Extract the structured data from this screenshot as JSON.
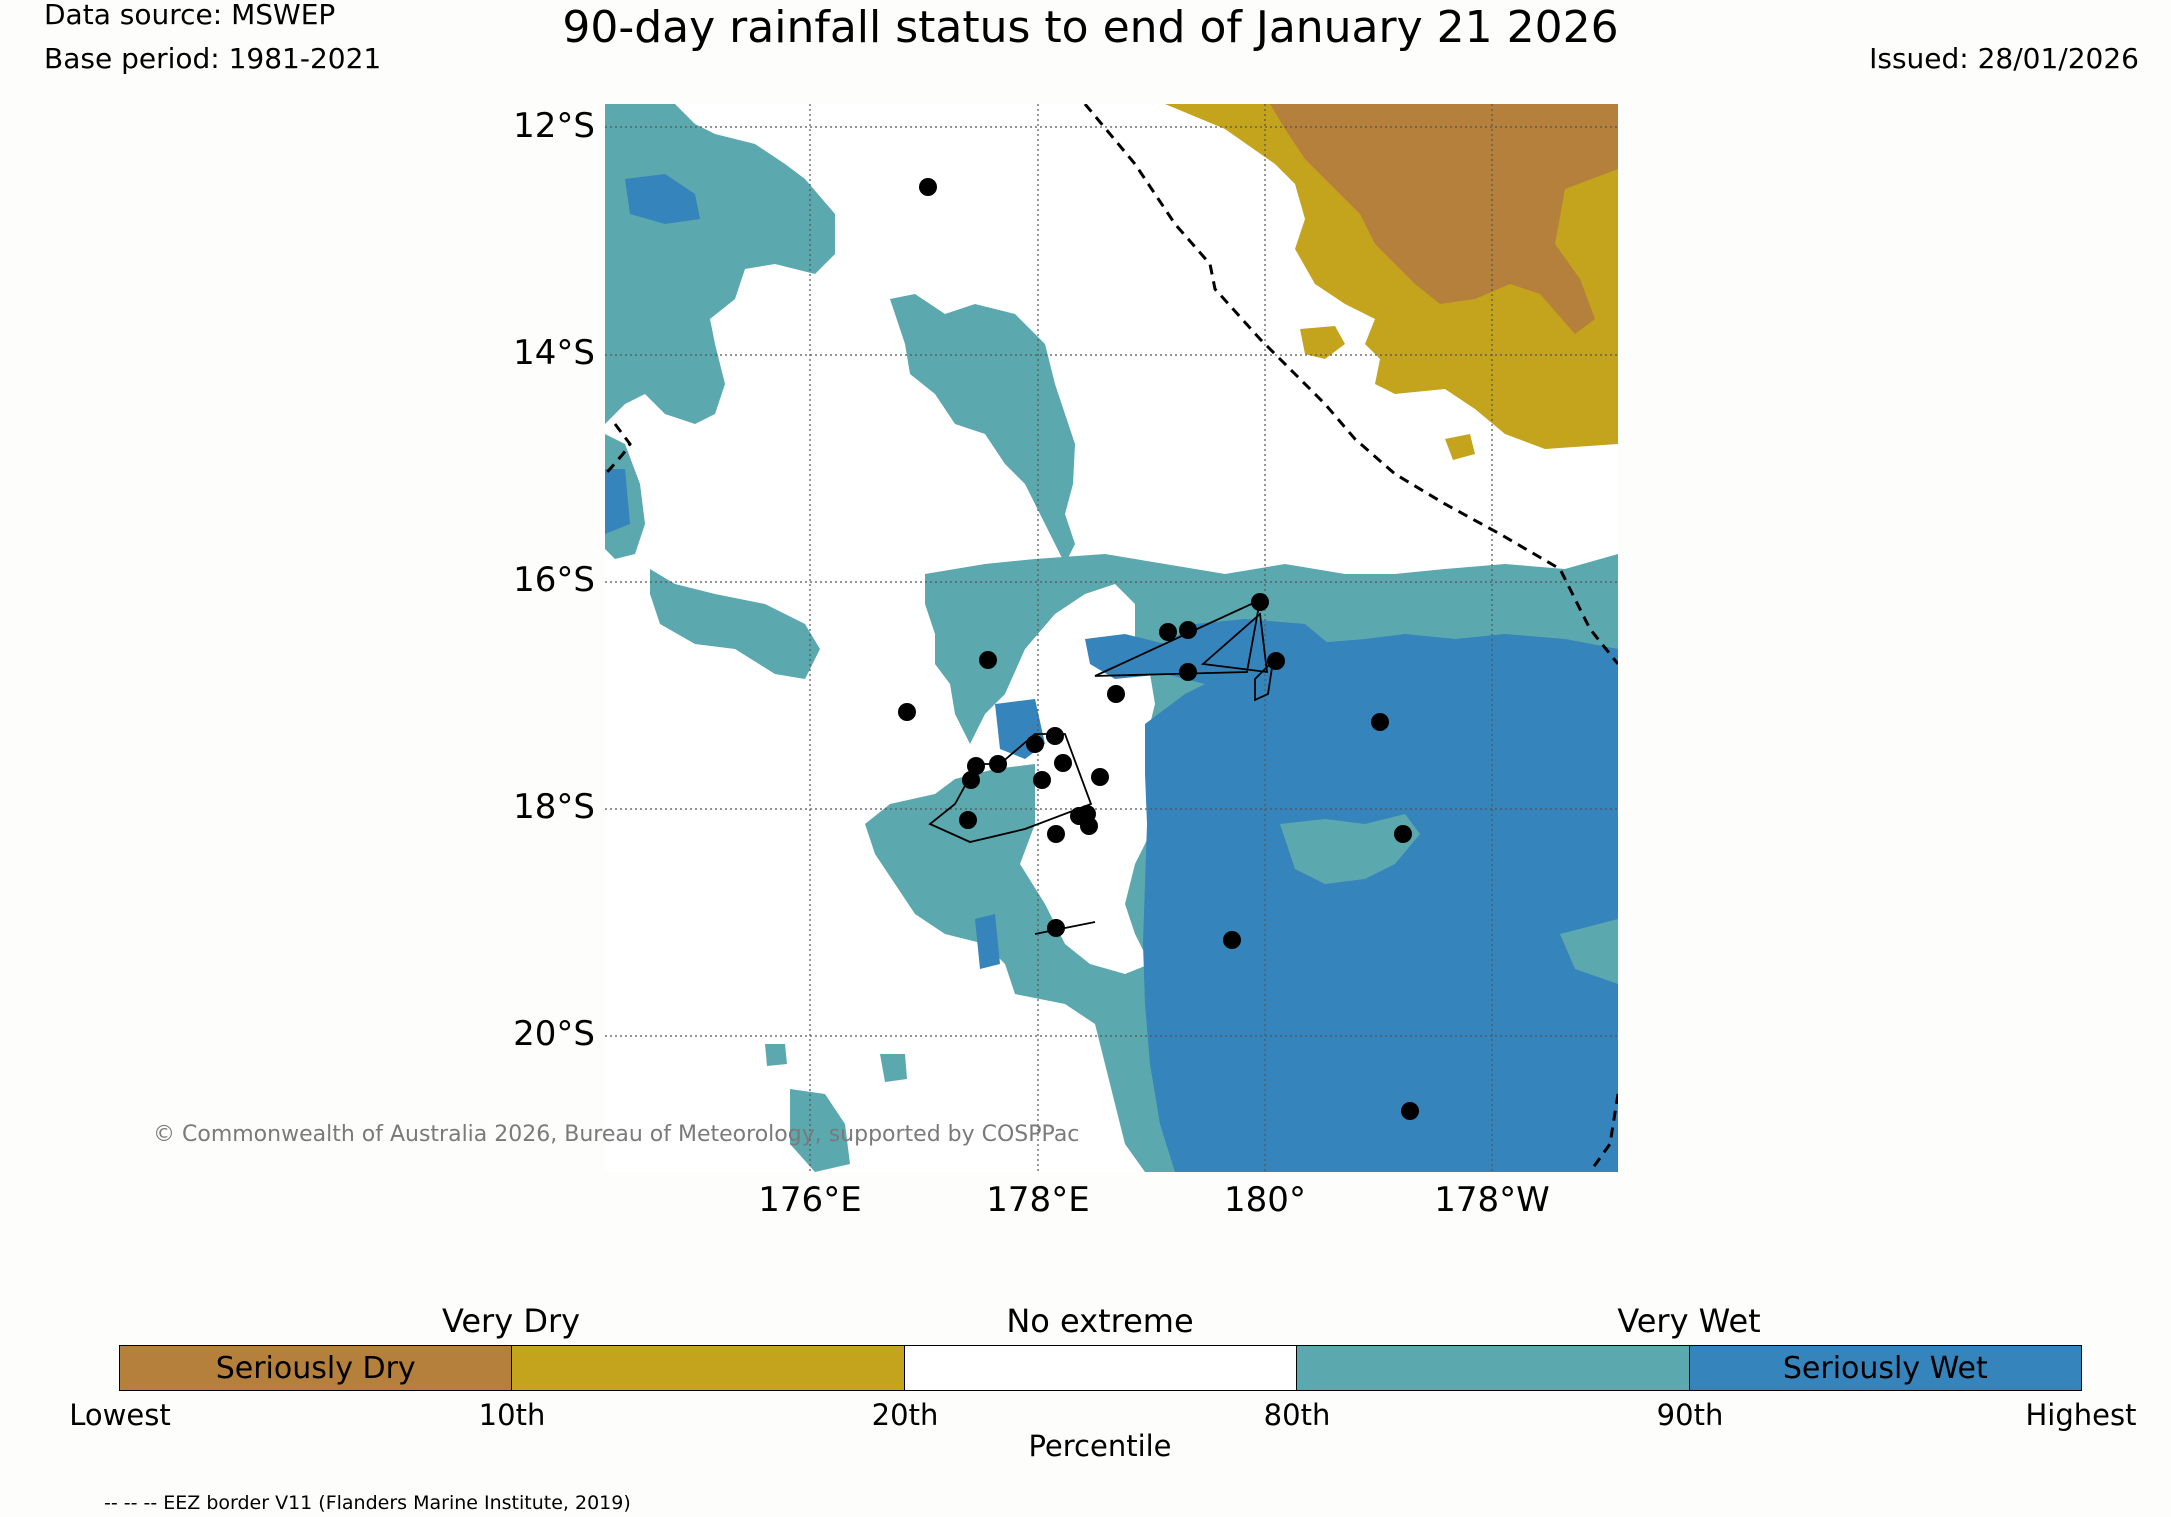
{
  "header": {
    "data_source": "Data source: MSWEP",
    "base_period": "Base period: 1981-2021",
    "title": "90-day rainfall status to end of January 21 2026",
    "issued": "Issued: 28/01/2026"
  },
  "map": {
    "lat_labels": [
      "12°S",
      "14°S",
      "16°S",
      "18°S",
      "20°S"
    ],
    "lon_labels": [
      "176°E",
      "178°E",
      "180°",
      "178°W"
    ],
    "copyright": "© Commonwealth of Australia 2026, Bureau of Meteorology, supported by COSPPac",
    "colors": {
      "seriously_dry": "#b57f3c",
      "very_dry": "#c4a41c",
      "no_extreme": "#ffffff",
      "very_wet": "#5ba8ae",
      "seriously_wet": "#3584bb"
    }
  },
  "legend": {
    "categories": [
      "Very Dry",
      "No extreme",
      "Very Wet"
    ],
    "segments": [
      {
        "label": "Seriously Dry",
        "color": "#b57f3c"
      },
      {
        "label": "",
        "color": "#c4a41c"
      },
      {
        "label": "",
        "color": "#ffffff"
      },
      {
        "label": "",
        "color": "#5ba8ae"
      },
      {
        "label": "Seriously Wet",
        "color": "#3584bb"
      }
    ],
    "ticks": [
      "Lowest",
      "10th",
      "20th",
      "80th",
      "90th",
      "Highest"
    ],
    "axis_label": "Percentile"
  },
  "footer": {
    "eez_note": "-- -- -- EEZ border V11 (Flanders Marine Institute, 2019)"
  }
}
